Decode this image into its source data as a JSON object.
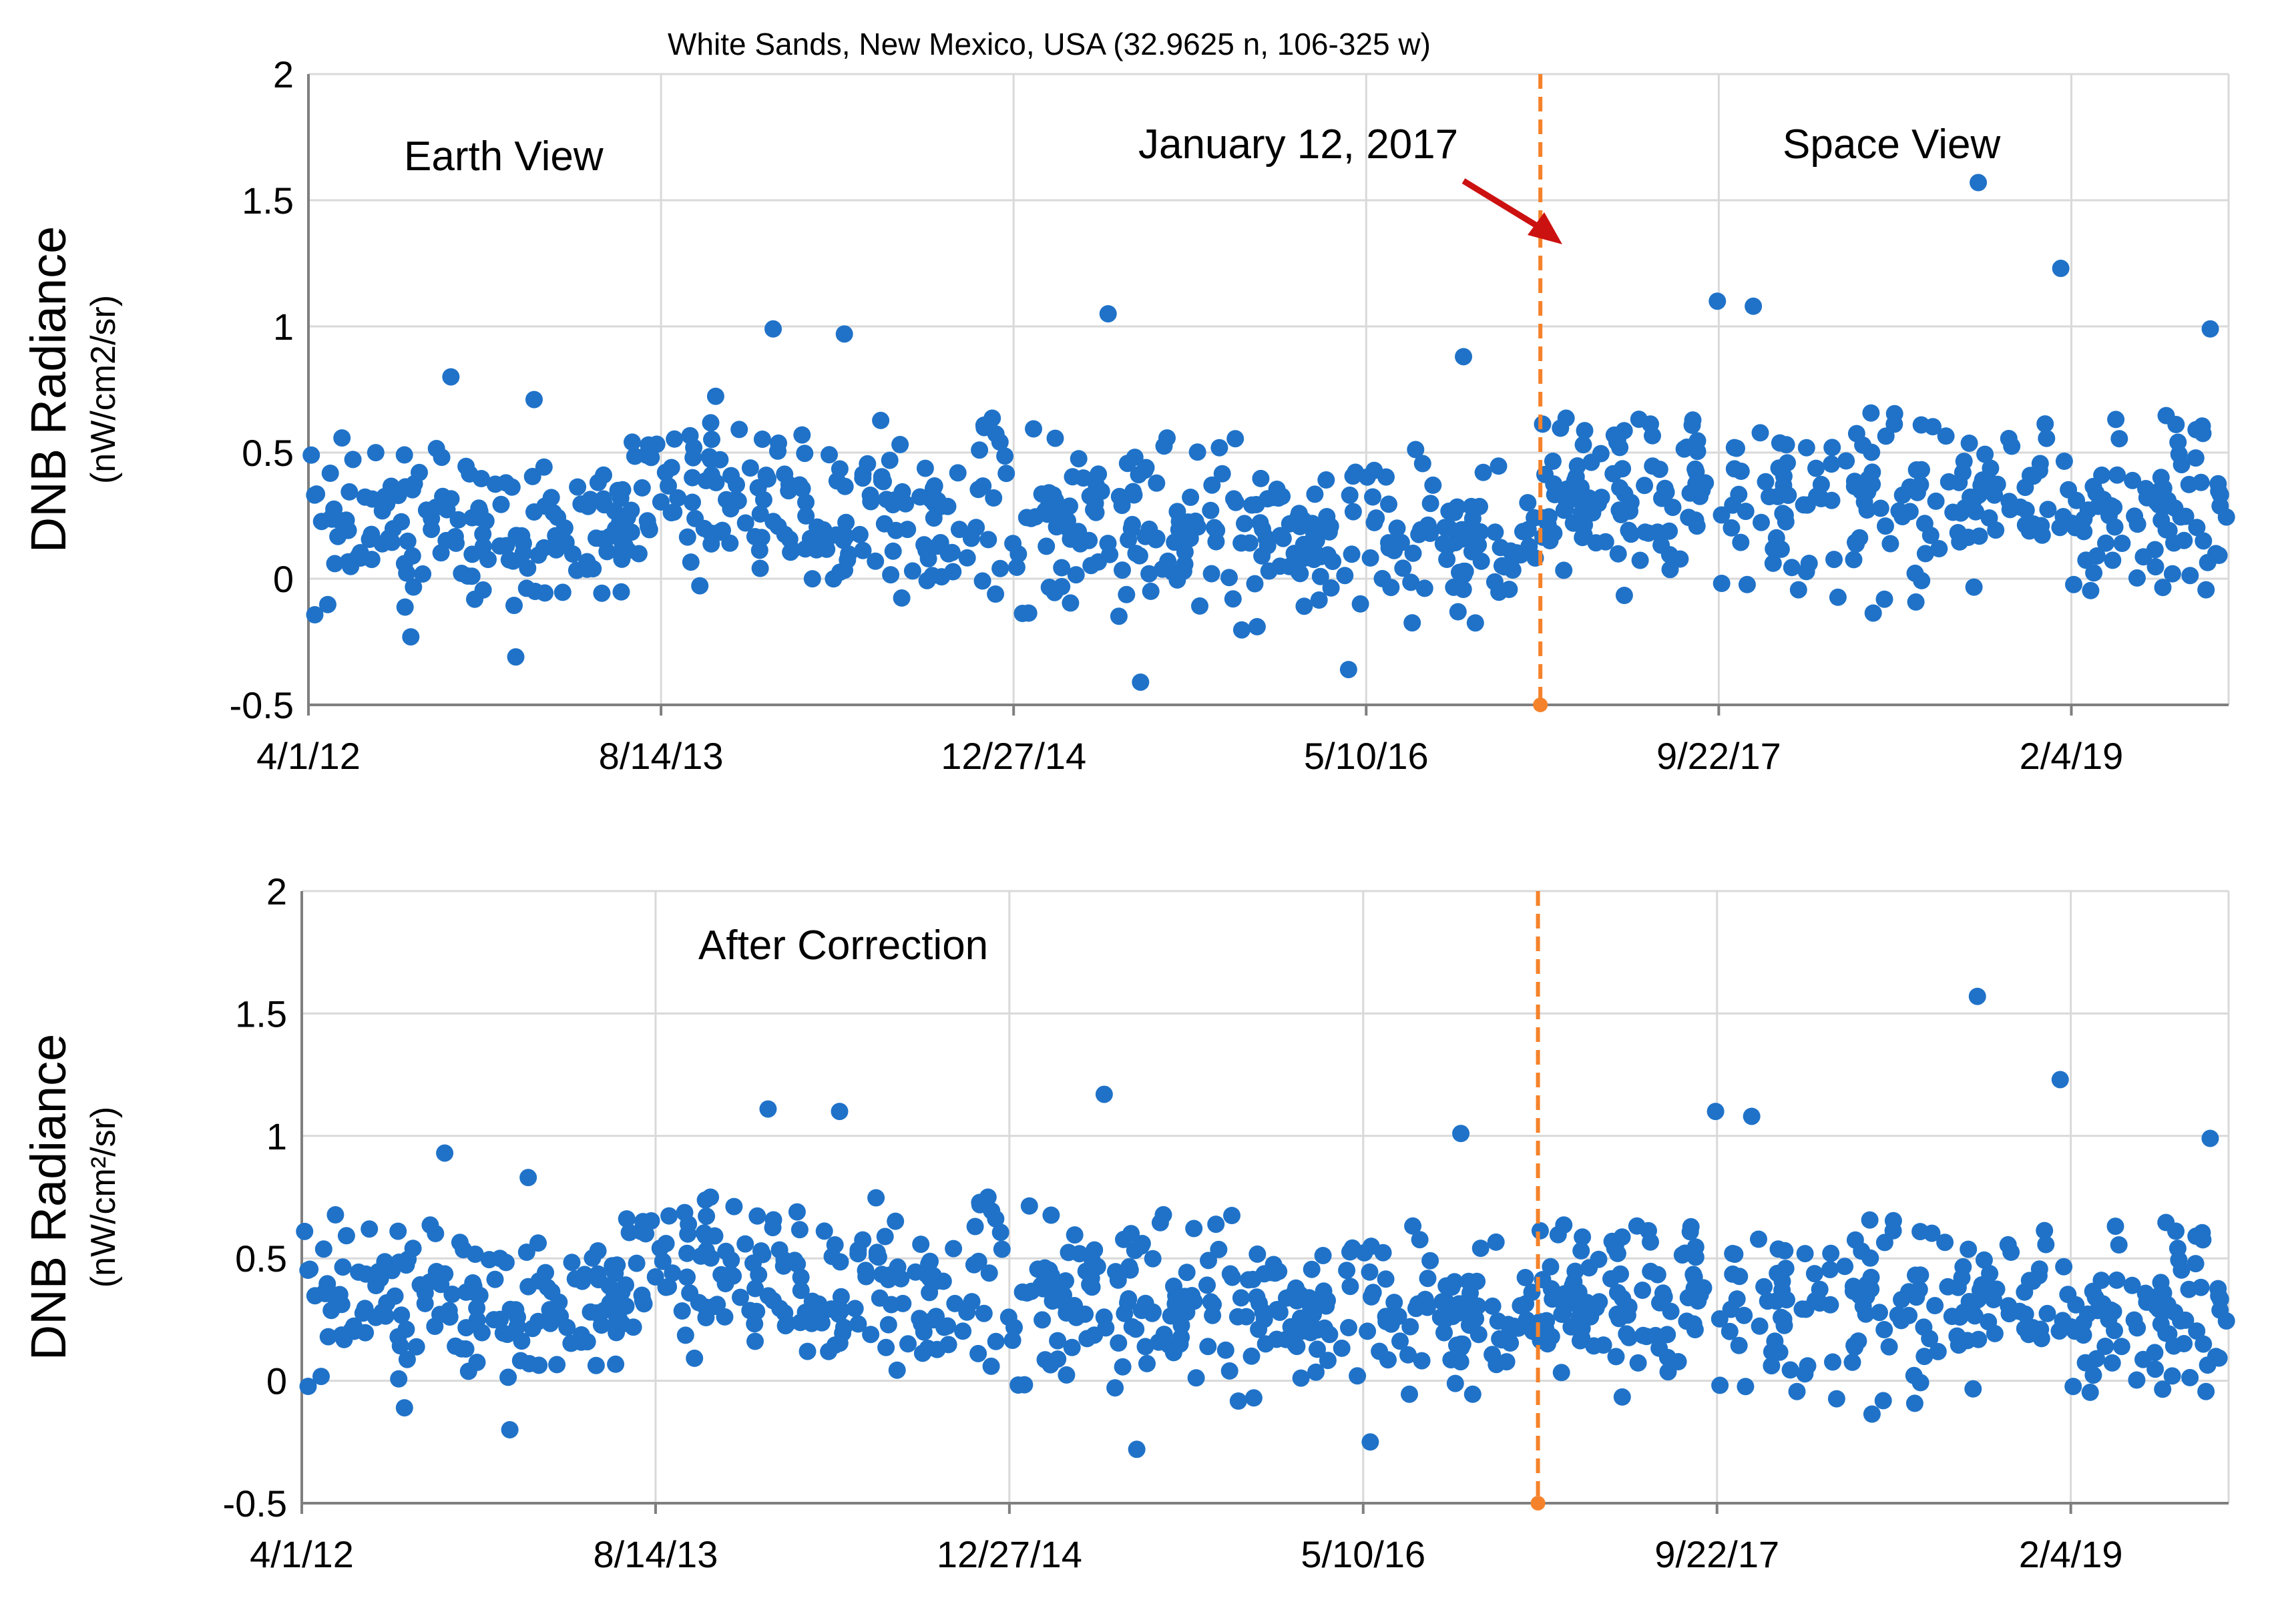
{
  "figure_title": "White Sands, New Mexico, USA (32.9625 n, 106-325 w)",
  "colors": {
    "points": "#1f72c8",
    "event_line": "#f5822a",
    "arrow": "#cc1111",
    "grid": "#d9d9d9",
    "axis": "#7f7f7f"
  },
  "chart_data": [
    {
      "type": "scatter",
      "panel": "top",
      "title": "White Sands, New Mexico, USA (32.9625 n, 106-325 w)",
      "ylabel": "DNB Radiance",
      "ylabel_units": "(nW/cm2/sr)",
      "ylim": [
        -0.5,
        2
      ],
      "yticks": [
        -0.5,
        0,
        0.5,
        1,
        1.5,
        2
      ],
      "ytick_labels": [
        "-0.5",
        "0",
        "0.5",
        "1",
        "1.5",
        "2"
      ],
      "xlim": [
        "2012-04-01",
        "2019-09-15"
      ],
      "xticks": [
        "2012-04-01",
        "2013-08-14",
        "2014-12-27",
        "2016-05-10",
        "2017-09-22",
        "2019-02-04"
      ],
      "xtick_labels": [
        "4/1/12",
        "8/14/13",
        "12/27/14",
        "5/10/16",
        "9/22/17",
        "2/4/19"
      ],
      "event": {
        "date": "2017-01-12",
        "label": "January 12, 2017"
      },
      "annotations": [
        {
          "text": "Earth View",
          "position": "upper-left"
        },
        {
          "text": "Space View",
          "position": "upper-right"
        }
      ],
      "notable_points": [
        {
          "x": "2012-04-05",
          "y": 0.49
        },
        {
          "x": "2012-10-20",
          "y": 0.8
        },
        {
          "x": "2013-02-15",
          "y": 0.71
        },
        {
          "x": "2013-01-20",
          "y": -0.31
        },
        {
          "x": "2014-01-20",
          "y": 0.99
        },
        {
          "x": "2014-05-01",
          "y": 0.97
        },
        {
          "x": "2015-05-10",
          "y": 1.05
        },
        {
          "x": "2015-06-25",
          "y": -0.41
        },
        {
          "x": "2016-04-15",
          "y": -0.36
        },
        {
          "x": "2016-09-25",
          "y": 0.88
        },
        {
          "x": "2017-09-20",
          "y": 1.1
        },
        {
          "x": "2017-11-10",
          "y": 1.08
        },
        {
          "x": "2018-09-25",
          "y": 1.57
        },
        {
          "x": "2019-01-20",
          "y": 1.23
        },
        {
          "x": "2019-08-20",
          "y": 0.99
        }
      ],
      "series": [
        {
          "name": "DNB radiance",
          "baseline_segments": [
            {
              "start": "2012-04-01",
              "end": "2013-06-30",
              "mean": 0.19,
              "sd": 0.15
            },
            {
              "start": "2013-07-01",
              "end": "2014-06-30",
              "mean": 0.32,
              "sd": 0.17
            },
            {
              "start": "2014-07-01",
              "end": "2016-01-31",
              "mean": 0.22,
              "sd": 0.16
            },
            {
              "start": "2016-02-01",
              "end": "2017-01-11",
              "mean": 0.16,
              "sd": 0.14
            },
            {
              "start": "2017-01-12",
              "end": "2018-03-31",
              "mean": 0.31,
              "sd": 0.17
            },
            {
              "start": "2018-04-01",
              "end": "2019-09-15",
              "mean": 0.3,
              "sd": 0.16
            }
          ],
          "points_per_year": 118
        }
      ]
    },
    {
      "type": "scatter",
      "panel": "bottom",
      "ylabel": "DNB Radiance",
      "ylabel_units": "(nW/cm²/sr)",
      "ylim": [
        -0.5,
        2
      ],
      "yticks": [
        -0.5,
        0,
        0.5,
        1,
        1.5,
        2
      ],
      "ytick_labels": [
        "-0.5",
        "0",
        "0.5",
        "1",
        "1.5",
        "2"
      ],
      "xlim": [
        "2012-04-01",
        "2019-09-15"
      ],
      "xticks": [
        "2012-04-01",
        "2013-08-14",
        "2014-12-27",
        "2016-05-10",
        "2017-09-22",
        "2019-02-04"
      ],
      "xtick_labels": [
        "4/1/12",
        "8/14/13",
        "12/27/14",
        "5/10/16",
        "9/22/17",
        "2/4/19"
      ],
      "event": {
        "date": "2017-01-12",
        "label": ""
      },
      "annotations": [
        {
          "text": "After Correction",
          "position": "upper-left"
        }
      ],
      "notable_points": [
        {
          "x": "2012-04-05",
          "y": 0.61
        },
        {
          "x": "2012-10-20",
          "y": 0.93
        },
        {
          "x": "2013-02-15",
          "y": 0.83
        },
        {
          "x": "2013-01-20",
          "y": -0.2
        },
        {
          "x": "2014-01-20",
          "y": 1.11
        },
        {
          "x": "2014-05-01",
          "y": 1.1
        },
        {
          "x": "2015-05-10",
          "y": 1.17
        },
        {
          "x": "2015-06-25",
          "y": -0.28
        },
        {
          "x": "2016-05-20",
          "y": -0.25
        },
        {
          "x": "2016-09-25",
          "y": 1.01
        },
        {
          "x": "2017-09-20",
          "y": 1.1
        },
        {
          "x": "2017-11-10",
          "y": 1.08
        },
        {
          "x": "2018-09-25",
          "y": 1.57
        },
        {
          "x": "2019-01-20",
          "y": 1.23
        },
        {
          "x": "2019-08-20",
          "y": 0.99
        }
      ],
      "series": [
        {
          "name": "DNB radiance (corrected)",
          "baseline_segments": [
            {
              "start": "2012-04-01",
              "end": "2013-06-30",
              "mean": 0.31,
              "sd": 0.15
            },
            {
              "start": "2013-07-01",
              "end": "2014-06-30",
              "mean": 0.44,
              "sd": 0.17
            },
            {
              "start": "2014-07-01",
              "end": "2016-01-31",
              "mean": 0.34,
              "sd": 0.16
            },
            {
              "start": "2016-02-01",
              "end": "2017-01-11",
              "mean": 0.28,
              "sd": 0.14
            },
            {
              "start": "2017-01-12",
              "end": "2018-03-31",
              "mean": 0.31,
              "sd": 0.17
            },
            {
              "start": "2018-04-01",
              "end": "2019-09-15",
              "mean": 0.3,
              "sd": 0.16
            }
          ],
          "points_per_year": 118
        }
      ]
    }
  ]
}
